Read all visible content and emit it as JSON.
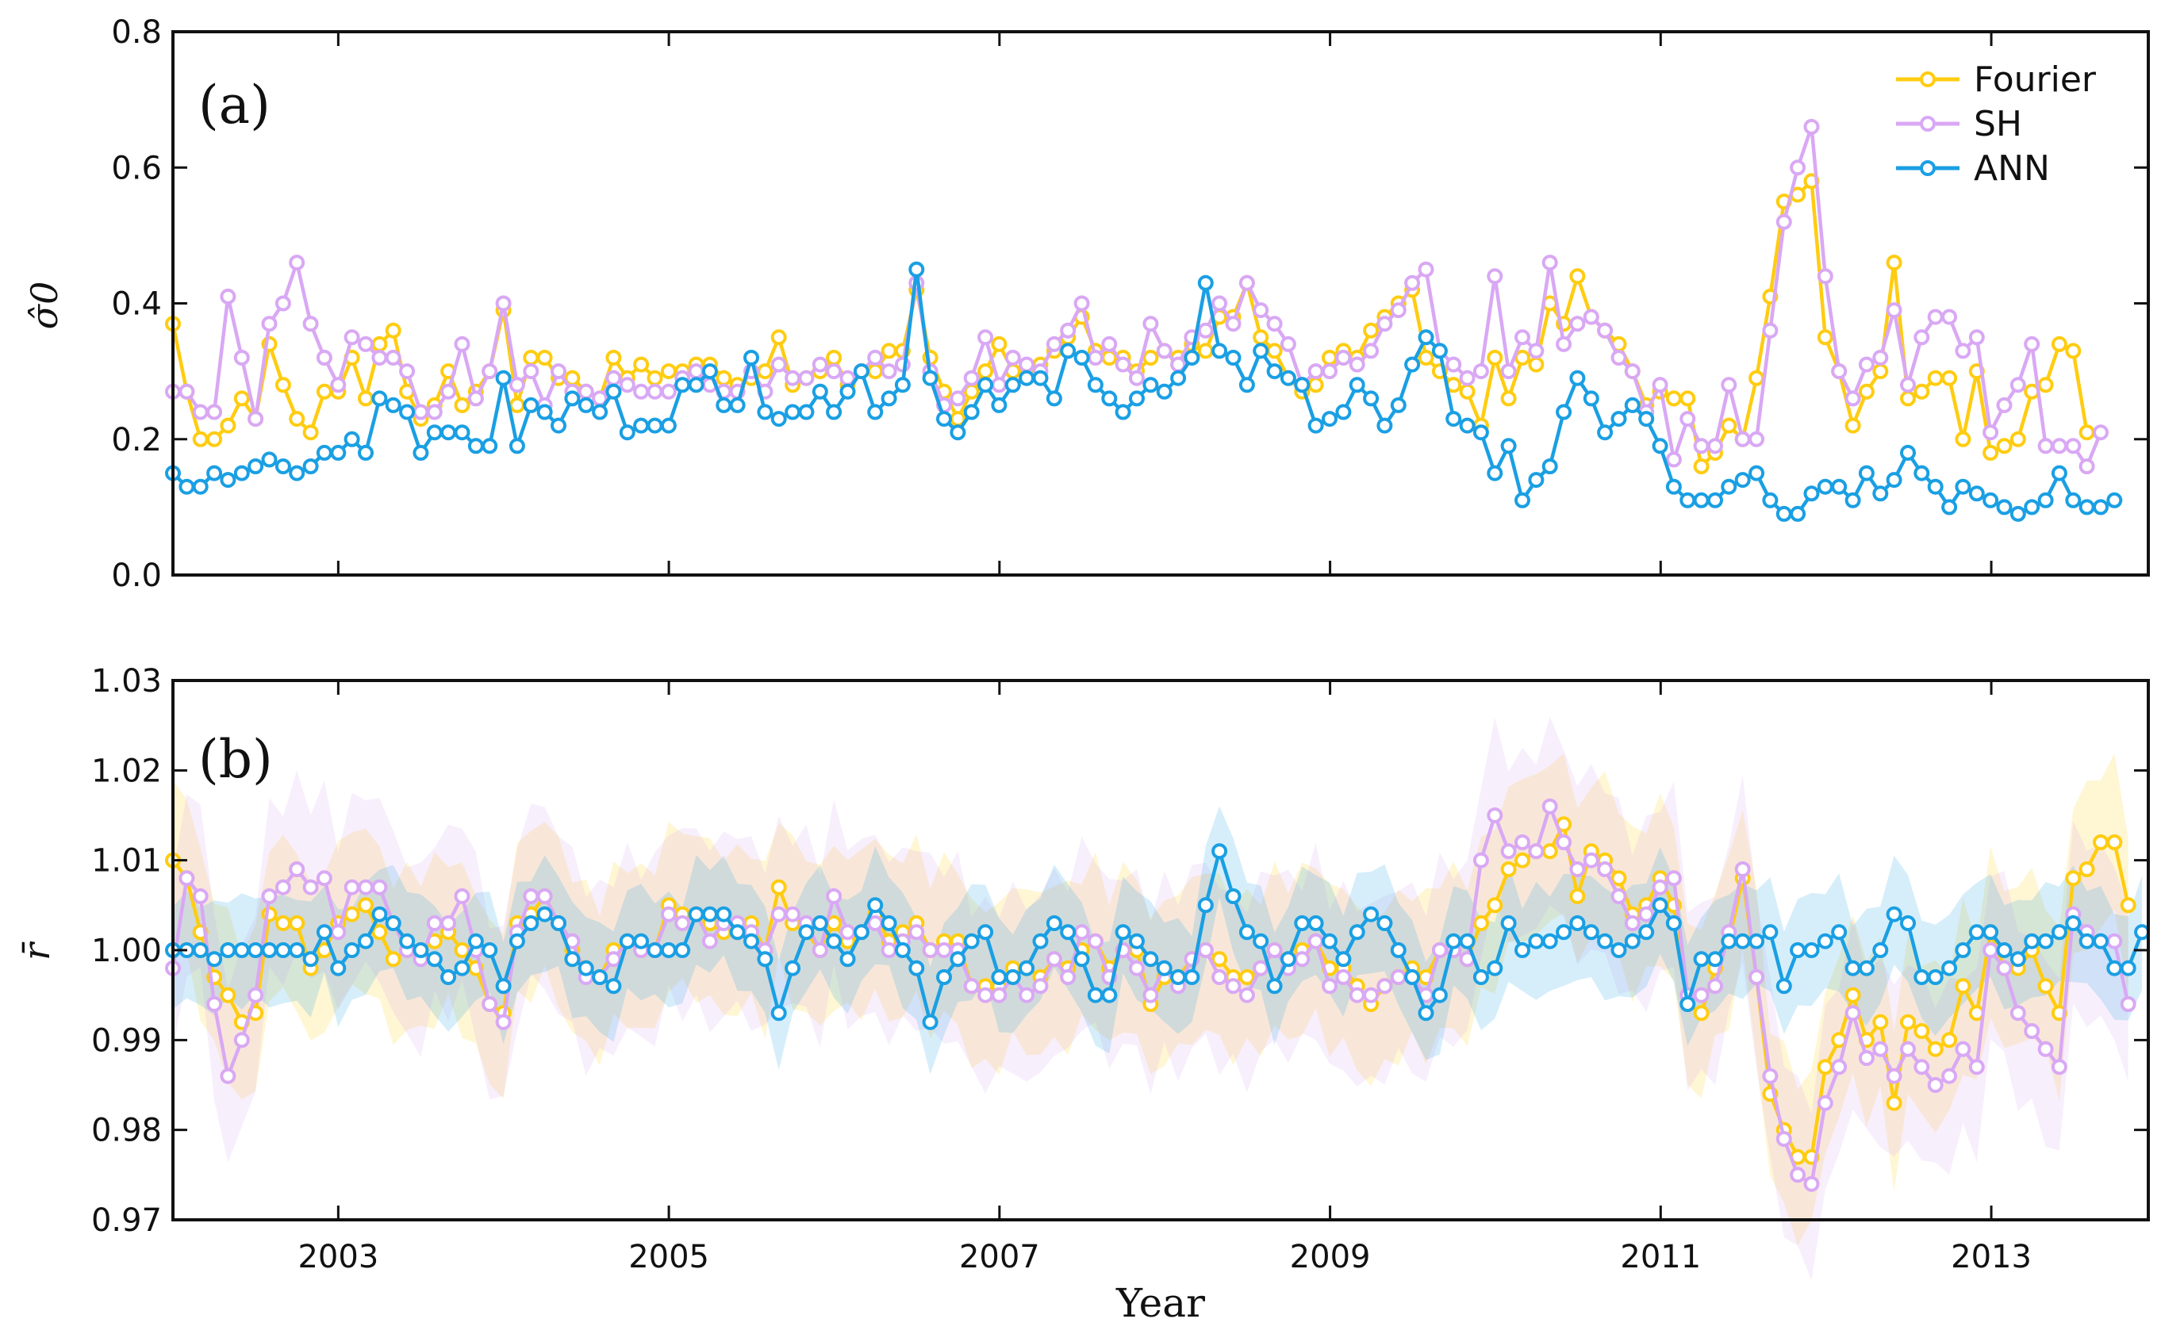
{
  "colors": {
    "Fourier": "#FFCC11",
    "SH": "#D9A8F4",
    "ANN": "#1A9FE3"
  },
  "chart_data": [
    {
      "type": "line",
      "panel_label": "(a)",
      "ylabel": "σ̂0",
      "xlabel": "",
      "xlim": [
        2002.0,
        2013.95
      ],
      "ylim": [
        0.0,
        0.8
      ],
      "xticks": [
        2003,
        2005,
        2007,
        2009,
        2011,
        2013
      ],
      "yticks": [
        0.0,
        0.2,
        0.4,
        0.6,
        0.8
      ],
      "ytick_labels": [
        "0.0",
        "0.2",
        "0.4",
        "0.6",
        "0.8"
      ],
      "grid": false,
      "legend": "top-right",
      "x_start": 2002.0,
      "x_step": 0.0833,
      "series": [
        {
          "name": "Fourier",
          "values": [
            0.37,
            0.27,
            0.2,
            0.2,
            0.22,
            0.26,
            0.23,
            0.34,
            0.28,
            0.23,
            0.21,
            0.27,
            0.27,
            0.32,
            0.26,
            0.34,
            0.36,
            0.27,
            0.23,
            0.25,
            0.3,
            0.25,
            0.27,
            0.3,
            0.39,
            0.25,
            0.32,
            0.32,
            0.29,
            0.29,
            0.27,
            0.26,
            0.32,
            0.29,
            0.31,
            0.29,
            0.3,
            0.3,
            0.31,
            0.31,
            0.29,
            0.28,
            0.29,
            0.3,
            0.35,
            0.28,
            0.29,
            0.3,
            0.32,
            0.28,
            0.3,
            0.3,
            0.33,
            0.33,
            0.42,
            0.32,
            0.27,
            0.23,
            0.27,
            0.3,
            0.34,
            0.3,
            0.3,
            0.31,
            0.33,
            0.35,
            0.38,
            0.33,
            0.32,
            0.32,
            0.3,
            0.32,
            0.33,
            0.32,
            0.34,
            0.33,
            0.38,
            0.38,
            0.43,
            0.35,
            0.33,
            0.29,
            0.27,
            0.28,
            0.32,
            0.33,
            0.32,
            0.36,
            0.38,
            0.4,
            0.42,
            0.32,
            0.3,
            0.28,
            0.27,
            0.22,
            0.32,
            0.26,
            0.32,
            0.31,
            0.4,
            0.37,
            0.44,
            0.38,
            0.36,
            0.34,
            0.3,
            0.25,
            0.27,
            0.26,
            0.26,
            0.16,
            0.18,
            0.22,
            0.2,
            0.29,
            0.41,
            0.55,
            0.56,
            0.58,
            0.35,
            0.3,
            0.22,
            0.27,
            0.3,
            0.46,
            0.26,
            0.27,
            0.29,
            0.29,
            0.2,
            0.3,
            0.18,
            0.19,
            0.2,
            0.27,
            0.28,
            0.34,
            0.33,
            0.21
          ]
        },
        {
          "name": "SH",
          "values": [
            0.27,
            0.27,
            0.24,
            0.24,
            0.41,
            0.32,
            0.23,
            0.37,
            0.4,
            0.46,
            0.37,
            0.32,
            0.28,
            0.35,
            0.34,
            0.32,
            0.32,
            0.3,
            0.24,
            0.24,
            0.27,
            0.34,
            0.26,
            0.3,
            0.4,
            0.28,
            0.3,
            0.25,
            0.3,
            0.27,
            0.27,
            0.26,
            0.29,
            0.28,
            0.27,
            0.27,
            0.27,
            0.29,
            0.3,
            0.28,
            0.27,
            0.27,
            0.3,
            0.27,
            0.31,
            0.29,
            0.29,
            0.31,
            0.3,
            0.29,
            0.3,
            0.32,
            0.3,
            0.31,
            0.43,
            0.3,
            0.25,
            0.26,
            0.29,
            0.35,
            0.28,
            0.32,
            0.31,
            0.3,
            0.34,
            0.36,
            0.4,
            0.32,
            0.34,
            0.31,
            0.29,
            0.37,
            0.33,
            0.31,
            0.35,
            0.36,
            0.4,
            0.37,
            0.43,
            0.39,
            0.37,
            0.34,
            0.28,
            0.3,
            0.3,
            0.32,
            0.31,
            0.33,
            0.37,
            0.39,
            0.43,
            0.45,
            0.33,
            0.31,
            0.29,
            0.3,
            0.44,
            0.3,
            0.35,
            0.33,
            0.46,
            0.34,
            0.37,
            0.38,
            0.36,
            0.32,
            0.3,
            0.24,
            0.28,
            0.17,
            0.23,
            0.19,
            0.19,
            0.28,
            0.2,
            0.2,
            0.36,
            0.52,
            0.6,
            0.66,
            0.44,
            0.3,
            0.26,
            0.31,
            0.32,
            0.39,
            0.28,
            0.35,
            0.38,
            0.38,
            0.33,
            0.35,
            0.21,
            0.25,
            0.28,
            0.34,
            0.19,
            0.19,
            0.19,
            0.16,
            0.21
          ]
        },
        {
          "name": "ANN",
          "values": [
            0.15,
            0.13,
            0.13,
            0.15,
            0.14,
            0.15,
            0.16,
            0.17,
            0.16,
            0.15,
            0.16,
            0.18,
            0.18,
            0.2,
            0.18,
            0.26,
            0.25,
            0.24,
            0.18,
            0.21,
            0.21,
            0.21,
            0.19,
            0.19,
            0.29,
            0.19,
            0.25,
            0.24,
            0.22,
            0.26,
            0.25,
            0.24,
            0.27,
            0.21,
            0.22,
            0.22,
            0.22,
            0.28,
            0.28,
            0.3,
            0.25,
            0.25,
            0.32,
            0.24,
            0.23,
            0.24,
            0.24,
            0.27,
            0.24,
            0.27,
            0.3,
            0.24,
            0.26,
            0.28,
            0.45,
            0.29,
            0.23,
            0.21,
            0.24,
            0.28,
            0.25,
            0.28,
            0.29,
            0.29,
            0.26,
            0.33,
            0.32,
            0.28,
            0.26,
            0.24,
            0.26,
            0.28,
            0.27,
            0.29,
            0.32,
            0.43,
            0.33,
            0.32,
            0.28,
            0.33,
            0.3,
            0.29,
            0.28,
            0.22,
            0.23,
            0.24,
            0.28,
            0.26,
            0.22,
            0.25,
            0.31,
            0.35,
            0.33,
            0.23,
            0.22,
            0.21,
            0.15,
            0.19,
            0.11,
            0.14,
            0.16,
            0.24,
            0.29,
            0.26,
            0.21,
            0.23,
            0.25,
            0.23,
            0.19,
            0.13,
            0.11,
            0.11,
            0.11,
            0.13,
            0.14,
            0.15,
            0.11,
            0.09,
            0.09,
            0.12,
            0.13,
            0.13,
            0.11,
            0.15,
            0.12,
            0.14,
            0.18,
            0.15,
            0.13,
            0.1,
            0.13,
            0.12,
            0.11,
            0.1,
            0.09,
            0.1,
            0.11,
            0.15,
            0.11,
            0.1,
            0.1,
            0.11
          ]
        }
      ]
    },
    {
      "type": "line",
      "panel_label": "(b)",
      "ylabel": "r̄",
      "xlabel": "Year",
      "xlim": [
        2002.0,
        2013.95
      ],
      "ylim": [
        0.97,
        1.03
      ],
      "xticks": [
        2003,
        2005,
        2007,
        2009,
        2011,
        2013
      ],
      "xtick_labels": [
        "2003",
        "2005",
        "2007",
        "2009",
        "2011",
        "2013"
      ],
      "yticks": [
        0.97,
        0.98,
        0.99,
        1.0,
        1.01,
        1.02,
        1.03
      ],
      "ytick_labels": [
        "0.97",
        "0.98",
        "0.99",
        "1.00",
        "1.01",
        "1.02",
        "1.03"
      ],
      "grid": false,
      "x_start": 2002.0,
      "x_step": 0.0833,
      "band_halfwidth": {
        "Fourier": 0.009,
        "SH": 0.01,
        "ANN": 0.006
      },
      "series": [
        {
          "name": "Fourier",
          "values": [
            1.01,
            1.008,
            1.002,
            0.997,
            0.995,
            0.992,
            0.993,
            1.004,
            1.003,
            1.003,
            0.998,
            1.0,
            1.003,
            1.004,
            1.005,
            1.002,
            0.999,
            1.0,
            1.0,
            1.001,
            1.002,
            1.0,
            0.998,
            0.994,
            0.993,
            1.003,
            1.004,
            1.006,
            1.003,
            1.0,
            0.998,
            0.997,
            1.0,
            1.001,
            1.0,
            1.0,
            1.005,
            1.004,
            1.004,
            1.003,
            1.002,
            1.002,
            1.003,
            1.0,
            1.007,
            1.003,
            1.002,
            1.0,
            1.003,
            1.001,
            1.002,
            1.004,
            1.001,
            1.002,
            1.003,
            1.0,
            1.001,
            1.001,
            0.996,
            0.996,
            0.996,
            0.998,
            0.998,
            0.997,
            0.999,
            0.998,
            1.0,
            1.001,
            0.998,
            1.0,
            1.0,
            0.994,
            0.997,
            0.997,
            0.999,
            1.0,
            0.999,
            0.997,
            0.997,
            0.998,
            1.0,
            0.999,
            1.0,
            1.001,
            0.998,
            0.998,
            0.996,
            0.994,
            0.996,
            0.997,
            0.998,
            0.997,
            1.0,
            1.0,
            0.999,
            1.003,
            1.005,
            1.009,
            1.01,
            1.011,
            1.011,
            1.014,
            1.006,
            1.011,
            1.01,
            1.008,
            1.004,
            1.005,
            1.008,
            1.005,
            0.994,
            0.993,
            0.998,
            1.001,
            1.008,
            0.997,
            0.984,
            0.98,
            0.977,
            0.977,
            0.987,
            0.99,
            0.995,
            0.99,
            0.992,
            0.983,
            0.992,
            0.991,
            0.989,
            0.99,
            0.996,
            0.993,
            1.002,
            0.998,
            0.998,
            1.0,
            0.996,
            0.993,
            1.008,
            1.009,
            1.012,
            1.012,
            1.005
          ]
        },
        {
          "name": "SH",
          "values": [
            0.998,
            1.008,
            1.006,
            0.994,
            0.986,
            0.99,
            0.995,
            1.006,
            1.007,
            1.009,
            1.007,
            1.008,
            1.002,
            1.007,
            1.007,
            1.007,
            1.003,
            1.0,
            0.999,
            1.003,
            1.003,
            1.006,
            1.0,
            0.994,
            0.992,
            1.002,
            1.006,
            1.006,
            1.003,
            1.001,
            0.997,
            0.997,
            0.999,
            1.001,
            1.0,
            1.0,
            1.004,
            1.003,
            1.004,
            1.001,
            1.003,
            1.003,
            1.002,
            1.0,
            1.004,
            1.004,
            1.003,
            1.0,
            1.006,
            1.002,
            1.002,
            1.003,
            1.0,
            1.001,
            1.002,
            1.0,
            1.0,
            1.0,
            0.996,
            0.995,
            0.995,
            0.997,
            0.995,
            0.996,
            0.999,
            0.997,
            1.002,
            1.001,
            0.997,
            1.0,
            0.998,
            0.995,
            0.998,
            0.996,
            0.999,
            1.0,
            0.997,
            0.996,
            0.995,
            0.998,
            1.0,
            0.998,
            0.999,
            1.001,
            0.996,
            0.997,
            0.995,
            0.995,
            0.996,
            0.997,
            0.997,
            0.995,
            1.0,
            1.0,
            0.999,
            1.01,
            1.015,
            1.011,
            1.012,
            1.011,
            1.016,
            1.012,
            1.009,
            1.01,
            1.009,
            1.006,
            1.003,
            1.004,
            1.007,
            1.008,
            0.995,
            0.995,
            0.996,
            1.002,
            1.009,
            0.997,
            0.986,
            0.979,
            0.975,
            0.974,
            0.983,
            0.987,
            0.993,
            0.988,
            0.989,
            0.986,
            0.989,
            0.987,
            0.985,
            0.986,
            0.989,
            0.987,
            1.0,
            0.998,
            0.993,
            0.991,
            0.989,
            0.987,
            1.004,
            1.002,
            1.001,
            1.001,
            0.994
          ]
        },
        {
          "name": "ANN",
          "values": [
            1.0,
            1.0,
            1.0,
            0.999,
            1.0,
            1.0,
            1.0,
            1.0,
            1.0,
            1.0,
            0.999,
            1.002,
            0.998,
            1.0,
            1.001,
            1.004,
            1.003,
            1.001,
            1.0,
            0.999,
            0.997,
            0.998,
            1.001,
            1.0,
            0.996,
            1.001,
            1.003,
            1.004,
            1.003,
            0.999,
            0.998,
            0.997,
            0.996,
            1.001,
            1.001,
            1.0,
            1.0,
            1.0,
            1.004,
            1.004,
            1.004,
            1.002,
            1.001,
            0.999,
            0.993,
            0.998,
            1.002,
            1.003,
            1.001,
            0.999,
            1.002,
            1.005,
            1.003,
            1.0,
            0.998,
            0.992,
            0.997,
            0.999,
            1.001,
            1.002,
            0.997,
            0.997,
            0.998,
            1.001,
            1.003,
            1.002,
            0.999,
            0.995,
            0.995,
            1.002,
            1.001,
            0.999,
            0.998,
            0.997,
            0.997,
            1.005,
            1.011,
            1.006,
            1.002,
            1.001,
            0.996,
            0.999,
            1.003,
            1.003,
            1.001,
            0.999,
            1.002,
            1.004,
            1.003,
            1.0,
            0.997,
            0.993,
            0.995,
            1.001,
            1.001,
            0.997,
            0.998,
            1.003,
            1.0,
            1.001,
            1.001,
            1.002,
            1.003,
            1.002,
            1.001,
            1.0,
            1.001,
            1.002,
            1.005,
            1.003,
            0.994,
            0.999,
            0.999,
            1.001,
            1.001,
            1.001,
            1.002,
            0.996,
            1.0,
            1.0,
            1.001,
            1.002,
            0.998,
            0.998,
            1.0,
            1.004,
            1.003,
            0.997,
            0.997,
            0.998,
            1.0,
            1.002,
            1.002,
            1.0,
            0.999,
            1.001,
            1.001,
            1.002,
            1.003,
            1.001,
            1.001,
            0.998,
            0.998,
            1.002
          ]
        }
      ]
    }
  ]
}
